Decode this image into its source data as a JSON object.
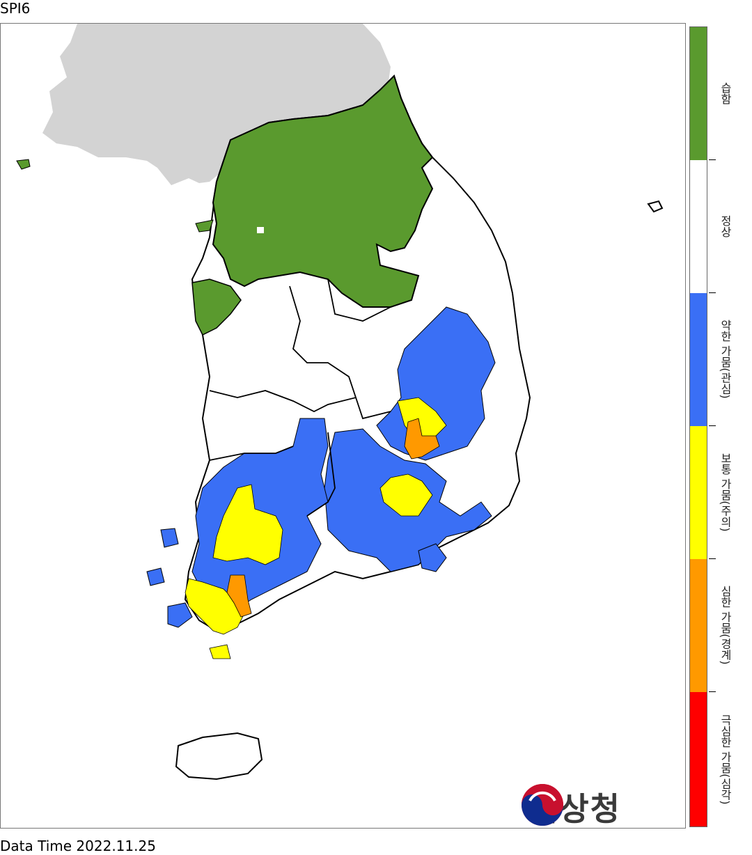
{
  "title": "SPI6",
  "footer": "Data Time 2022.11.25",
  "logo_text": "기상청",
  "legend": [
    {
      "label": "습함",
      "color": "#5a9a2e"
    },
    {
      "label": "정상",
      "color": "#ffffff"
    },
    {
      "label": "약한 가뭄(관심)",
      "color": "#3a6ff5"
    },
    {
      "label": "보통 가뭄(주의)",
      "color": "#ffff00"
    },
    {
      "label": "심한 가뭄(경계)",
      "color": "#ff9900"
    },
    {
      "label": "극심한 가뭄(심각)",
      "color": "#ff0000"
    }
  ],
  "colors": {
    "north_korea": "#d3d3d3",
    "region_border": "#000000"
  }
}
